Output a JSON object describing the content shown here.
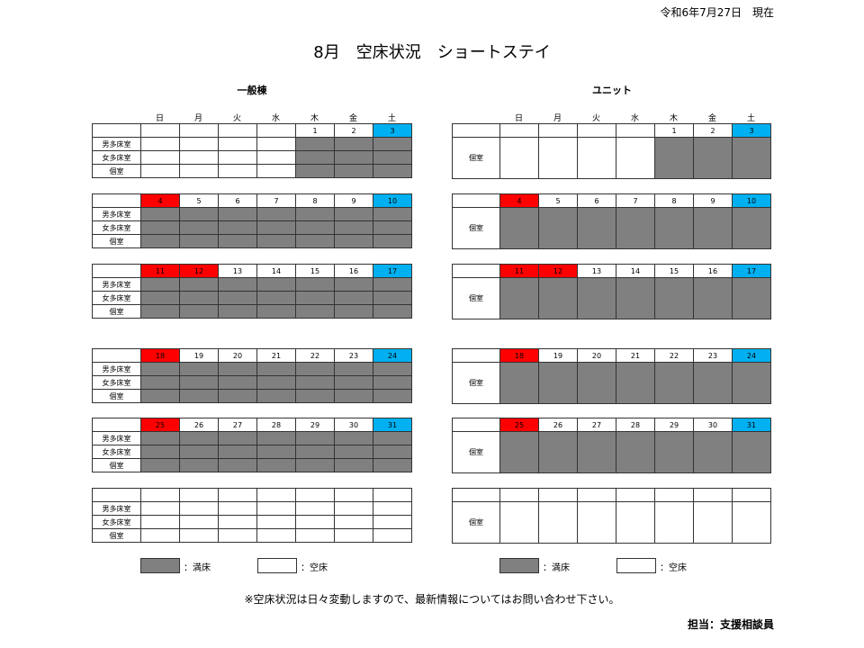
{
  "date_label": "令和6年7月27日　現在",
  "title": "8月　空床状況　ショートステイ",
  "weekdays": [
    "日",
    "月",
    "火",
    "水",
    "木",
    "金",
    "土"
  ],
  "colors": {
    "full": "#808080",
    "holiday": "#ff0000",
    "saturday": "#00b0f0"
  },
  "general": {
    "heading": "一般棟",
    "rows": [
      "男多床室",
      "女多床室",
      "個室"
    ]
  },
  "unit": {
    "heading": "ユニット",
    "rows": [
      "個室"
    ]
  },
  "weeks": [
    {
      "days": [
        "",
        "",
        "",
        "",
        "1",
        "2",
        "3"
      ],
      "holidays": [],
      "full": [
        false,
        false,
        false,
        false,
        true,
        true,
        true
      ]
    },
    {
      "days": [
        "4",
        "5",
        "6",
        "7",
        "8",
        "9",
        "10"
      ],
      "holidays": [
        "4"
      ],
      "full": [
        true,
        true,
        true,
        true,
        true,
        true,
        true
      ]
    },
    {
      "days": [
        "11",
        "12",
        "13",
        "14",
        "15",
        "16",
        "17"
      ],
      "holidays": [
        "11",
        "12"
      ],
      "full": [
        true,
        true,
        true,
        true,
        true,
        true,
        true
      ]
    },
    {
      "days": [
        "18",
        "19",
        "20",
        "21",
        "22",
        "23",
        "24"
      ],
      "holidays": [
        "18"
      ],
      "full": [
        true,
        true,
        true,
        true,
        true,
        true,
        true
      ]
    },
    {
      "days": [
        "25",
        "26",
        "27",
        "28",
        "29",
        "30",
        "31"
      ],
      "holidays": [
        "25"
      ],
      "full": [
        true,
        true,
        true,
        true,
        true,
        true,
        true
      ]
    },
    {
      "days": [
        "",
        "",
        "",
        "",
        "",
        "",
        ""
      ],
      "holidays": [],
      "full": [
        false,
        false,
        false,
        false,
        false,
        false,
        false
      ]
    }
  ],
  "legend": {
    "full": "：満床",
    "empty": "：空床"
  },
  "note": "※空床状況は日々変動しますので、最新情報についてはお問い合わせ下さい。",
  "staff": "担当：支援相談員"
}
